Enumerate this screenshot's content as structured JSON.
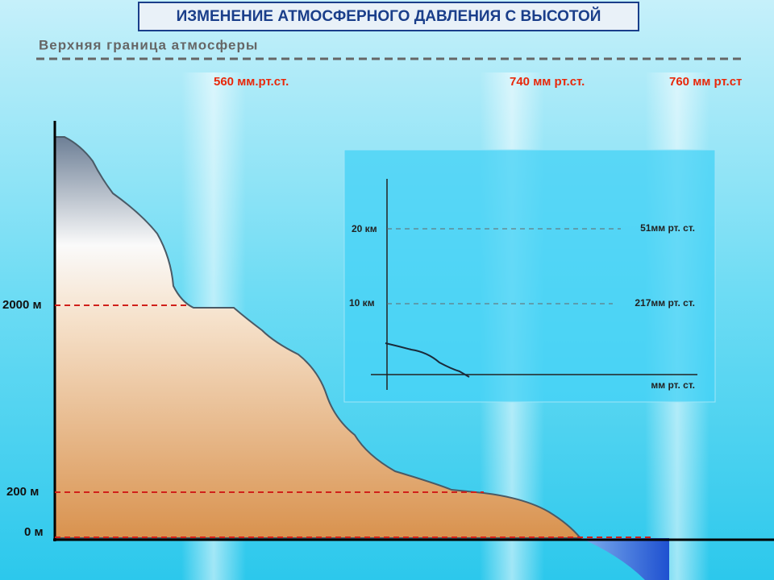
{
  "header": {
    "title": "ИЗМЕНЕНИЕ АТМОСФЕРНОГО ДАВЛЕНИЯ С ВЫСОТОЙ"
  },
  "boundary": {
    "label": "Верхняя граница атмосферы"
  },
  "pressure_labels": [
    "560 мм.рт.ст.",
    "740 мм рт.ст.",
    "760 мм рт.ст"
  ],
  "altitude_labels": [
    "2000 м",
    "200 м",
    "0 м"
  ],
  "inset": {
    "heights": [
      "20 км",
      "10 км"
    ],
    "pressures": [
      "51мм рт. ст.",
      "217мм рт. ст."
    ],
    "axis_label": "мм рт. ст."
  }
}
